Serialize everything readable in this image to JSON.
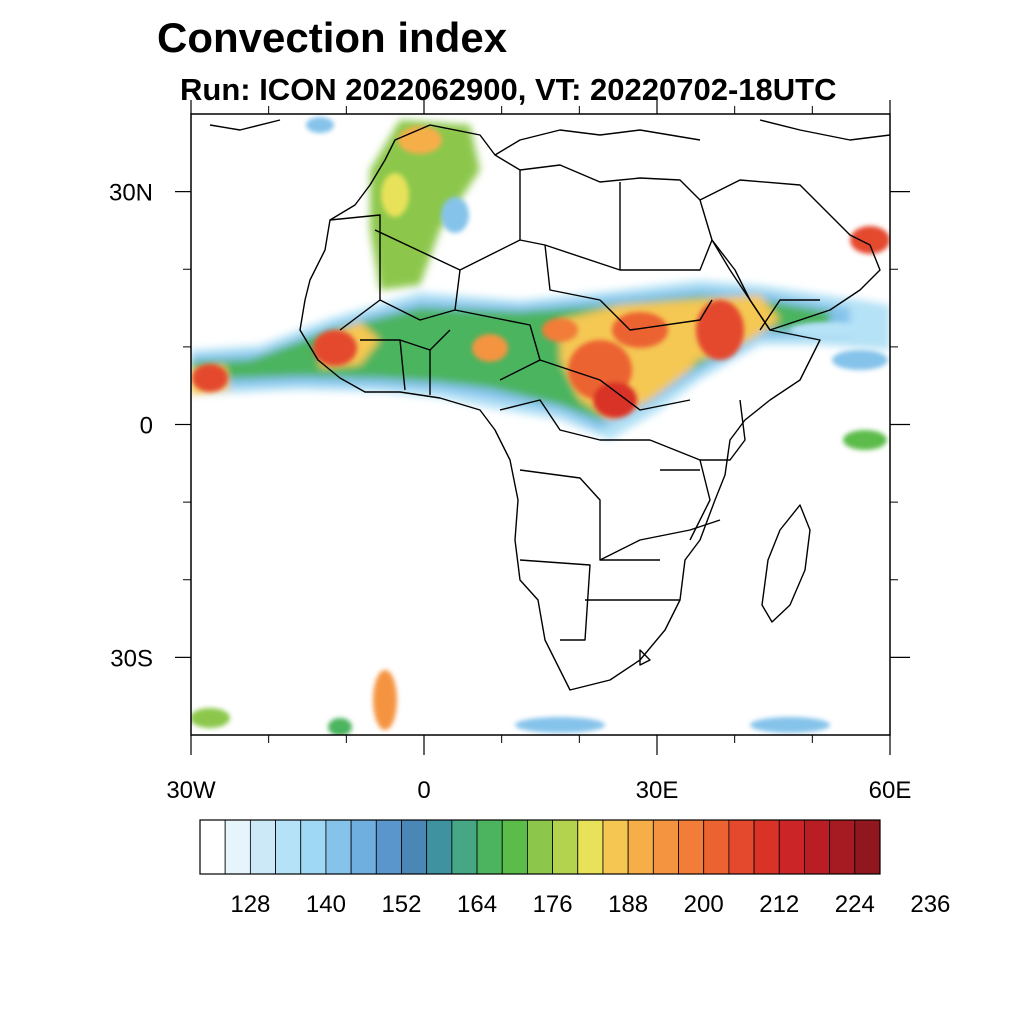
{
  "title": "Convection index",
  "subtitle": "Run: ICON 2022062900,  VT: 20220702-18UTC",
  "map": {
    "lon_range": [
      -30,
      60
    ],
    "lat_range": [
      -40,
      40
    ],
    "lat_labels": [
      {
        "lat": 30,
        "text": "30N"
      },
      {
        "lat": 0,
        "text": "0"
      },
      {
        "lat": -30,
        "text": "30S"
      }
    ],
    "lon_labels": [
      {
        "lon": -30,
        "text": "30W"
      },
      {
        "lon": 0,
        "text": "0"
      },
      {
        "lon": 30,
        "text": "30E"
      },
      {
        "lon": 60,
        "text": "60E"
      }
    ],
    "minor_lon_ticks": [
      -20,
      -10,
      10,
      20,
      40,
      50
    ],
    "minor_lat_ticks": [
      20,
      10,
      -10,
      -20
    ]
  },
  "colorbar": {
    "labels": [
      "128",
      "140",
      "152",
      "164",
      "176",
      "188",
      "200",
      "212",
      "224",
      "236"
    ],
    "colors": [
      "#ffffff",
      "#e6f4fc",
      "#cbe9f7",
      "#b5e2f6",
      "#9fd8f4",
      "#85c3ea",
      "#6fafe0",
      "#5a96cc",
      "#4a87b6",
      "#3f92a0",
      "#46a784",
      "#4cb45f",
      "#5cbc4a",
      "#8cc74b",
      "#b3d24d",
      "#e7e25a",
      "#f5c752",
      "#f6ae48",
      "#f49440",
      "#f17d38",
      "#ec6332",
      "#e4492d",
      "#d93328",
      "#cc2527",
      "#b81e24",
      "#a51b21",
      "#8f171d"
    ]
  }
}
